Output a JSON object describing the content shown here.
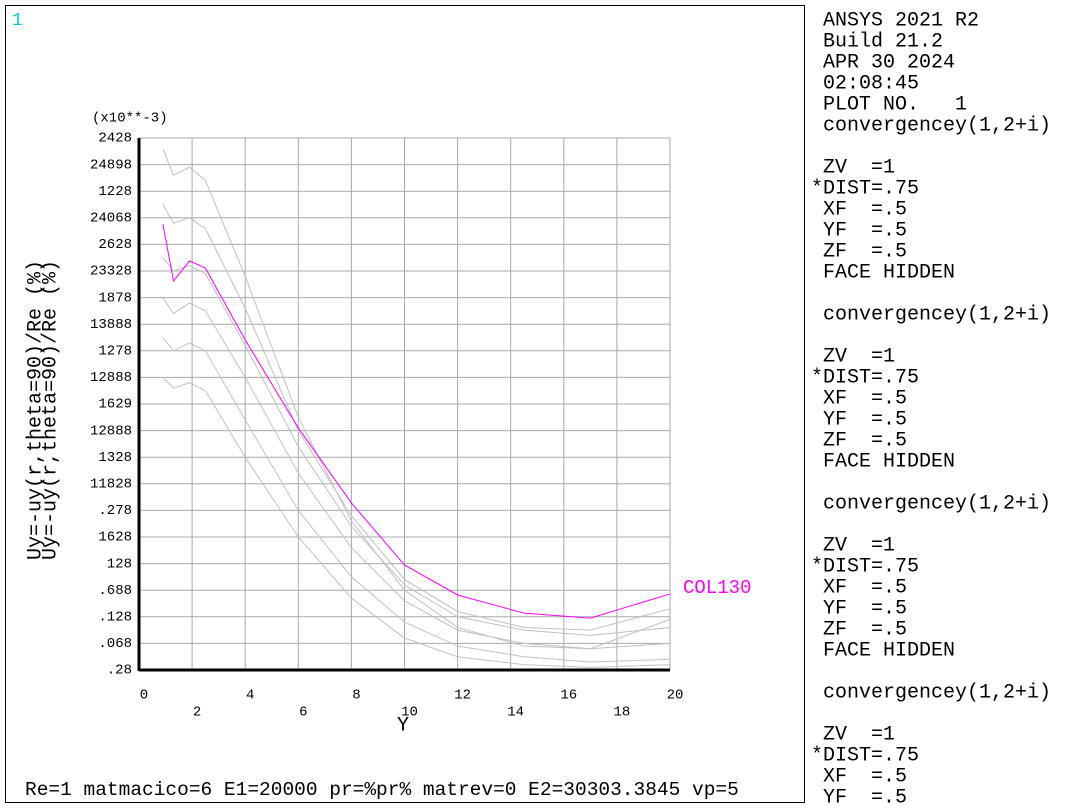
{
  "viewport_label": "1",
  "caption": "Re=1 matmacico=6 E1=20000 pr=%pr% matrev=0 E2=30303.3845 vp=5",
  "side_panel": {
    "groups": [
      [
        "ANSYS 2021 R2",
        "Build 21.2",
        "APR 30 2024",
        "02:08:45",
        "PLOT NO.   1",
        "convergencey(1,2+i)"
      ],
      [
        "ZV  =1",
        "*DIST=.75",
        "XF  =.5",
        "YF  =.5",
        "ZF  =.5",
        "FACE HIDDEN"
      ],
      [
        "convergencey(1,2+i)"
      ],
      [
        "ZV  =1",
        "*DIST=.75",
        "XF  =.5",
        "YF  =.5",
        "ZF  =.5",
        "FACE HIDDEN"
      ],
      [
        "convergencey(1,2+i)"
      ],
      [
        "ZV  =1",
        "*DIST=.75",
        "XF  =.5",
        "YF  =.5",
        "ZF  =.5",
        "FACE HIDDEN"
      ],
      [
        "convergencey(1,2+i)"
      ],
      [
        "ZV  =1",
        "*DIST=.75",
        "XF  =.5",
        "YF  =.5"
      ]
    ]
  },
  "chart_data": {
    "type": "line",
    "y_label": "Uy=-uy(r,theta=90)/Re (%)",
    "y_multiplier": "(x10**-3)",
    "x_label": "Y",
    "x": [
      0.9,
      1.3,
      1.9,
      2.5,
      4,
      6,
      8,
      10,
      12,
      14.5,
      17,
      20
    ],
    "xlim": [
      0,
      20
    ],
    "xticks": [
      0,
      2,
      4,
      6,
      8,
      10,
      12,
      14,
      16,
      18,
      20
    ],
    "ylim": [
      0,
      20
    ],
    "yticks": [
      {
        "value": 0,
        "label": ".28"
      },
      {
        "value": 1,
        "label": ".068"
      },
      {
        "value": 2,
        "label": ".128"
      },
      {
        "value": 3,
        "label": ".688"
      },
      {
        "value": 4,
        "label": "128"
      },
      {
        "value": 5,
        "label": "1628"
      },
      {
        "value": 6,
        "label": ".278"
      },
      {
        "value": 7,
        "label": "11828"
      },
      {
        "value": 8,
        "label": "1328"
      },
      {
        "value": 9,
        "label": "12888"
      },
      {
        "value": 10,
        "label": "1629"
      },
      {
        "value": 11,
        "label": "12888"
      },
      {
        "value": 12,
        "label": "1278"
      },
      {
        "value": 13,
        "label": "13888"
      },
      {
        "value": 14,
        "label": "1878"
      },
      {
        "value": 15,
        "label": "23328"
      },
      {
        "value": 16,
        "label": "2628"
      },
      {
        "value": 17,
        "label": "24068"
      },
      {
        "value": 18,
        "label": "1228"
      },
      {
        "value": 19,
        "label": "24898"
      },
      {
        "value": 20,
        "label": "2428"
      }
    ],
    "grid": true,
    "series": [
      {
        "color": "#c0c0c0",
        "values": [
          19.6,
          18.6,
          18.9,
          18.4,
          14.8,
          9.5,
          5.6,
          3.0,
          1.6,
          0.9,
          0.8,
          1.9
        ]
      },
      {
        "color": "#c0c0c0",
        "values": [
          17.5,
          16.8,
          17.0,
          16.6,
          13.6,
          9.0,
          5.8,
          3.4,
          2.2,
          1.6,
          1.5,
          2.3
        ]
      },
      {
        "color": "#c0c0c0",
        "values": [
          15.5,
          15.0,
          15.2,
          14.9,
          12.2,
          8.4,
          5.4,
          3.2,
          2.0,
          1.5,
          1.3,
          1.6
        ]
      },
      {
        "color": "#c0c0c0",
        "values": [
          14.0,
          13.4,
          13.8,
          13.5,
          11.0,
          7.4,
          4.6,
          2.6,
          1.5,
          1.0,
          0.8,
          1.0
        ]
      },
      {
        "color": "#c0c0c0",
        "values": [
          12.5,
          12.0,
          12.3,
          12.0,
          9.4,
          6.0,
          3.5,
          1.8,
          0.9,
          0.5,
          0.3,
          0.4
        ]
      },
      {
        "color": "#c0c0c0",
        "values": [
          11.0,
          10.6,
          10.8,
          10.5,
          8.0,
          5.0,
          2.7,
          1.2,
          0.5,
          0.2,
          0.1,
          0.2
        ]
      },
      {
        "name": "COL130",
        "color": "#ff00ff",
        "values": [
          16.77,
          14.62,
          15.38,
          15.11,
          12.41,
          9.1,
          6.28,
          3.95,
          2.82,
          2.14,
          1.95,
          2.86
        ]
      }
    ]
  }
}
